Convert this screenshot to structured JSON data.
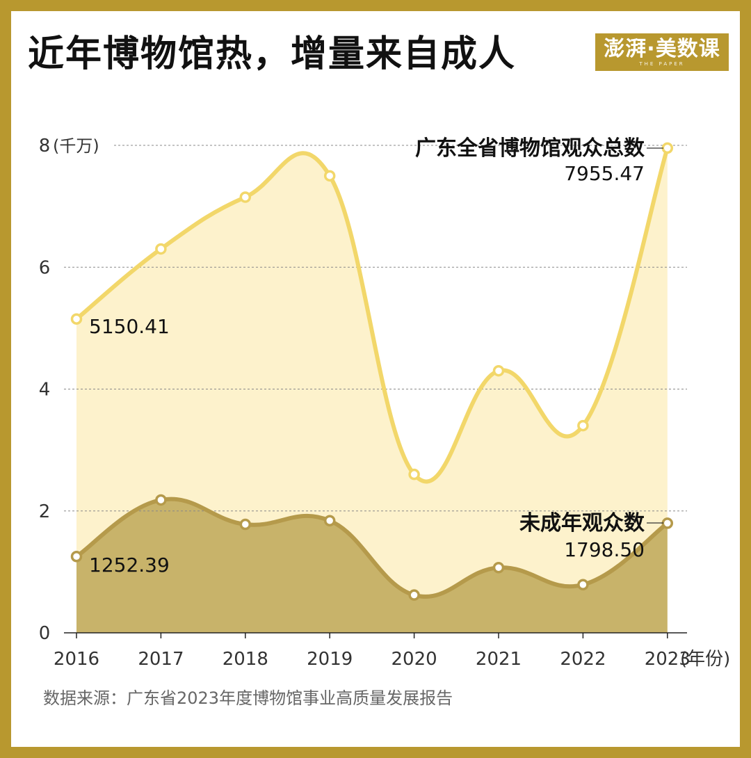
{
  "header": {
    "title": "近年博物馆热，增量来自成人",
    "logo_text": "澎湃·美数课",
    "logo_sub": "THE PAPER"
  },
  "source": "数据来源：广东省2023年度博物馆事业高质量发展报告",
  "colors": {
    "frame": "#b8982f",
    "total_line": "#f2d76a",
    "total_fill": "#fdf2cc",
    "minor_line": "#b59a4b",
    "minor_fill": "#c8b36a",
    "grid": "#888888",
    "text": "#111111",
    "axis_text": "#333333"
  },
  "chart_data": {
    "type": "area",
    "ylabel": "(千万)",
    "xlabel": "(年份)",
    "ylim": [
      0,
      8
    ],
    "yticks": [
      0,
      2,
      4,
      6,
      8
    ],
    "categories": [
      "2016",
      "2017",
      "2018",
      "2019",
      "2020",
      "2021",
      "2022",
      "2023"
    ],
    "series": [
      {
        "name": "广东全省博物馆观众总数",
        "values": [
          5.15041,
          6.3,
          7.15,
          7.5,
          2.6,
          4.3,
          3.4,
          7.95547
        ],
        "label_first": "5150.41",
        "label_last": "7955.47"
      },
      {
        "name": "未成年观众数",
        "values": [
          1.25239,
          2.18,
          1.78,
          1.84,
          0.62,
          1.07,
          0.79,
          1.7985
        ],
        "label_first": "1252.39",
        "label_last": "1798.50"
      }
    ],
    "grid": true,
    "gridlines": [
      2,
      4,
      6,
      8
    ]
  }
}
